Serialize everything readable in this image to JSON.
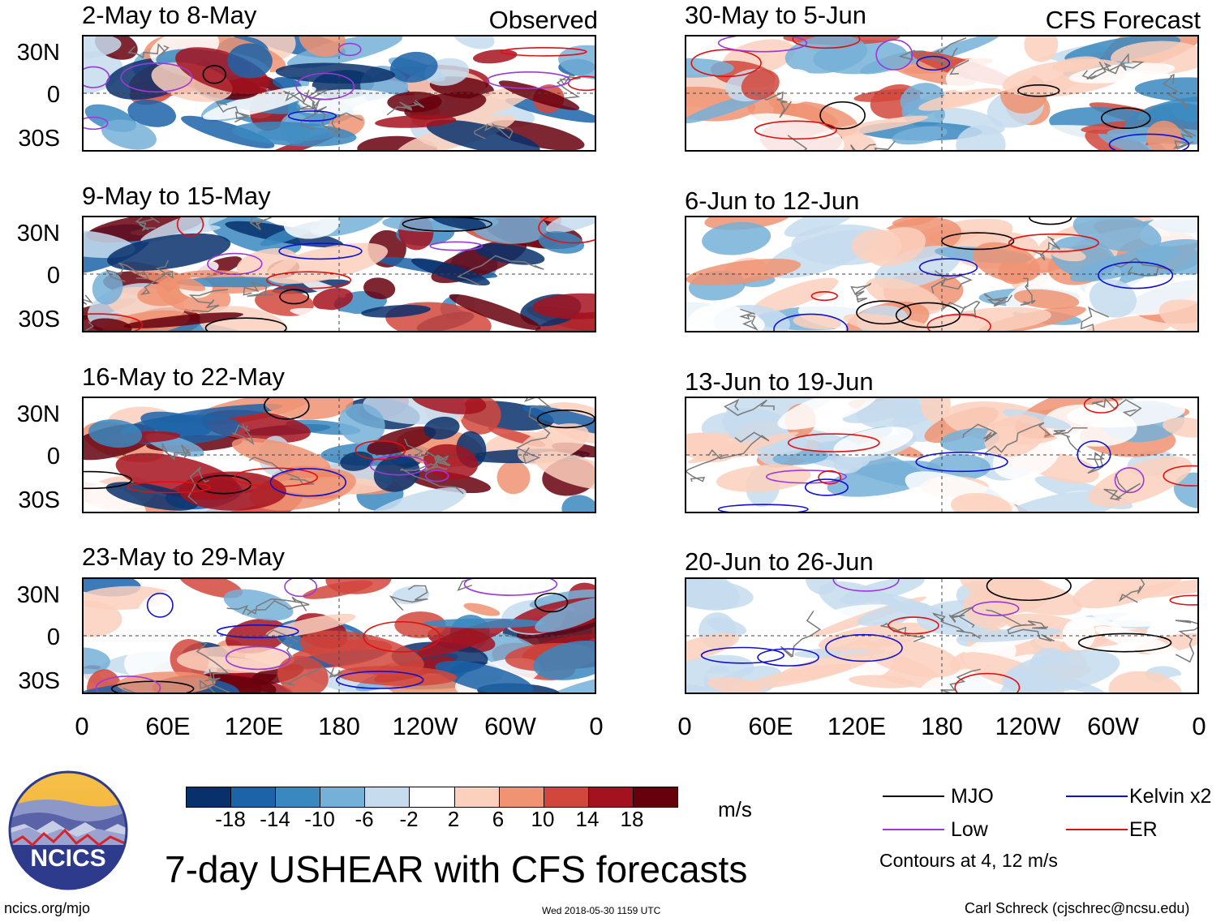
{
  "chart_data": {
    "type": "heatmap",
    "title": "7-day USHEAR with CFS forecasts",
    "variable": "USHEAR",
    "units": "m/s",
    "x_ticks": [
      "0",
      "60E",
      "120E",
      "180",
      "120W",
      "60W",
      "0"
    ],
    "y_ticks": [
      "30N",
      "0",
      "30S"
    ],
    "columns": [
      {
        "label": "Observed",
        "panels": [
          {
            "period": "2-May to 8-May"
          },
          {
            "period": "9-May to 15-May"
          },
          {
            "period": "16-May to 22-May"
          },
          {
            "period": "23-May to 29-May"
          }
        ]
      },
      {
        "label": "CFS Forecast",
        "panels": [
          {
            "period": "30-May to 5-Jun"
          },
          {
            "period": "6-Jun to 12-Jun"
          },
          {
            "period": "13-Jun to 19-Jun"
          },
          {
            "period": "20-Jun to 26-Jun"
          }
        ]
      }
    ],
    "colorbar": {
      "labels": [
        "-18",
        "-14",
        "-10",
        "-6",
        "-2",
        "2",
        "6",
        "10",
        "14",
        "18"
      ],
      "colors": [
        "#08306b",
        "#1c63a8",
        "#3a88c0",
        "#75b0d8",
        "#c6dcee",
        "#ffffff",
        "#fbd0bd",
        "#f09372",
        "#d2473c",
        "#a5121f",
        "#67000d"
      ]
    },
    "legend": {
      "items": [
        {
          "name": "MJO",
          "color": "#000000"
        },
        {
          "name": "Kelvin x2",
          "color": "#1010d0"
        },
        {
          "name": "Low",
          "color": "#9a3ad8"
        },
        {
          "name": "ER",
          "color": "#e01010"
        }
      ],
      "note": "Contours at 4, 12 m/s"
    }
  },
  "logo": {
    "text": "NCICS"
  },
  "footer": {
    "url": "ncics.org/mjo",
    "timestamp": "Wed 2018-05-30 1159 UTC",
    "author": "Carl Schreck (cjschrec@ncsu.edu)"
  }
}
